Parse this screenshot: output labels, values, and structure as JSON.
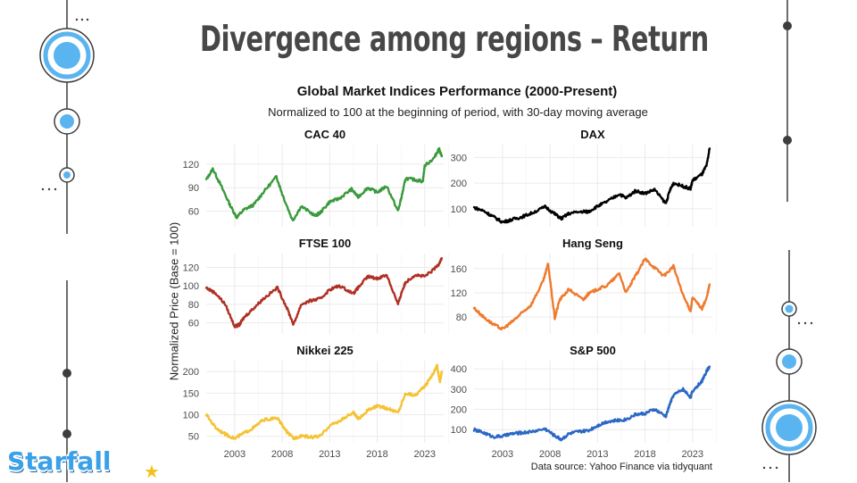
{
  "slide": {
    "title": "Divergence among regions – Return"
  },
  "logo": {
    "text": "Starfall",
    "icon": "star-icon"
  },
  "colors": {
    "title": "#474747",
    "accent_blue": "#5ab4f0",
    "dark": "#3d3d3d"
  },
  "chart_data": {
    "type": "line",
    "title": "Global Market Indices Performance (2000-Present)",
    "subtitle": "Normalized to 100 at the beginning of period, with 30-day moving average",
    "ylabel": "Normalized Price (Base = 100)",
    "source": "Data source: Yahoo Finance via tidyquant",
    "grid": true,
    "legend": "none",
    "x_ticks": [
      2003,
      2008,
      2013,
      2018,
      2023
    ],
    "panels": [
      {
        "name": "CAC 40",
        "color": "#3a9a3c",
        "ylim": [
          40,
          145
        ],
        "y_ticks": [
          60,
          90,
          120
        ],
        "x": [
          2000,
          2000.7,
          2001.5,
          2002.5,
          2003.2,
          2004,
          2005,
          2006,
          2007.4,
          2008,
          2009.1,
          2010,
          2011.5,
          2012,
          2013,
          2014,
          2015.3,
          2016,
          2017,
          2018,
          2019,
          2020.2,
          2020.6,
          2021,
          2022,
          2022.8,
          2023,
          2024,
          2024.5,
          2024.8
        ],
        "y": [
          100,
          114,
          94,
          68,
          52,
          62,
          68,
          84,
          104,
          82,
          48,
          66,
          54,
          58,
          72,
          76,
          88,
          78,
          90,
          84,
          92,
          60,
          80,
          102,
          100,
          98,
          118,
          128,
          140,
          130
        ]
      },
      {
        "name": "DAX",
        "color": "#000000",
        "ylim": [
          30,
          350
        ],
        "y_ticks": [
          100,
          200,
          300
        ],
        "x": [
          2000,
          2001,
          2002,
          2003,
          2004,
          2005,
          2006,
          2007.5,
          2008.5,
          2009.2,
          2010,
          2011.5,
          2012,
          2013,
          2014,
          2015.3,
          2016,
          2017,
          2018,
          2019,
          2020.2,
          2020.6,
          2021,
          2022,
          2022.8,
          2023,
          2024,
          2024.5,
          2024.8
        ],
        "y": [
          105,
          92,
          70,
          48,
          58,
          68,
          82,
          108,
          80,
          62,
          82,
          90,
          88,
          110,
          128,
          158,
          142,
          170,
          160,
          175,
          120,
          170,
          200,
          188,
          178,
          210,
          235,
          270,
          335
        ]
      },
      {
        "name": "FTSE 100",
        "color": "#b03024",
        "ylim": [
          48,
          135
        ],
        "y_ticks": [
          60,
          80,
          100,
          120
        ],
        "x": [
          2000,
          2001,
          2002,
          2003,
          2003.5,
          2004,
          2005,
          2006,
          2007.5,
          2008.5,
          2009.2,
          2010,
          2011,
          2012,
          2013,
          2014,
          2015.5,
          2016,
          2017,
          2018,
          2019,
          2020.2,
          2020.6,
          2021,
          2022,
          2023,
          2024,
          2024.5,
          2024.8
        ],
        "y": [
          98,
          92,
          80,
          56,
          58,
          66,
          76,
          86,
          98,
          76,
          58,
          80,
          84,
          86,
          96,
          100,
          92,
          98,
          110,
          108,
          112,
          80,
          94,
          104,
          112,
          110,
          118,
          124,
          130
        ]
      },
      {
        "name": "Hang Seng",
        "color": "#ee7a2e",
        "ylim": [
          52,
          185
        ],
        "y_ticks": [
          80,
          120,
          160
        ],
        "x": [
          2000,
          2001,
          2002,
          2003,
          2004,
          2005,
          2006,
          2007.3,
          2007.8,
          2008.5,
          2009,
          2010,
          2011.5,
          2012,
          2013,
          2014,
          2015.3,
          2016,
          2017,
          2018,
          2019,
          2020,
          2021,
          2022,
          2022.8,
          2023,
          2024,
          2024.5,
          2024.8
        ],
        "y": [
          95,
          80,
          68,
          60,
          72,
          86,
          100,
          140,
          168,
          78,
          108,
          126,
          108,
          118,
          126,
          132,
          152,
          120,
          148,
          176,
          162,
          148,
          164,
          116,
          90,
          112,
          94,
          112,
          134
        ]
      },
      {
        "name": "Nikkei 225",
        "color": "#f5c232",
        "ylim": [
          35,
          225
        ],
        "y_ticks": [
          50,
          100,
          150,
          200
        ],
        "x": [
          2000,
          2001,
          2002,
          2003,
          2004,
          2005,
          2006,
          2007.5,
          2008.5,
          2009.2,
          2010,
          2011,
          2012,
          2013,
          2014,
          2015.5,
          2016,
          2017,
          2018,
          2019,
          2020.2,
          2021,
          2022,
          2023,
          2024,
          2024.3,
          2024.6,
          2024.8
        ],
        "y": [
          100,
          70,
          55,
          45,
          58,
          70,
          88,
          92,
          60,
          45,
          52,
          48,
          50,
          75,
          85,
          105,
          90,
          110,
          120,
          115,
          105,
          150,
          145,
          165,
          200,
          215,
          175,
          200
        ]
      },
      {
        "name": "S&P 500",
        "color": "#2b68c4",
        "ylim": [
          35,
          440
        ],
        "y_ticks": [
          100,
          200,
          300,
          400
        ],
        "x": [
          2000,
          2001,
          2002,
          2003,
          2004,
          2005,
          2006,
          2007.5,
          2008.5,
          2009.2,
          2010,
          2011,
          2012,
          2013,
          2014,
          2015,
          2016,
          2017,
          2018,
          2019,
          2020.2,
          2020.6,
          2021,
          2022,
          2022.8,
          2023,
          2024,
          2024.5,
          2024.8
        ],
        "y": [
          100,
          85,
          65,
          68,
          80,
          84,
          90,
          104,
          70,
          52,
          80,
          90,
          95,
          120,
          140,
          145,
          150,
          175,
          180,
          200,
          165,
          225,
          270,
          300,
          260,
          290,
          340,
          390,
          410
        ]
      }
    ]
  }
}
